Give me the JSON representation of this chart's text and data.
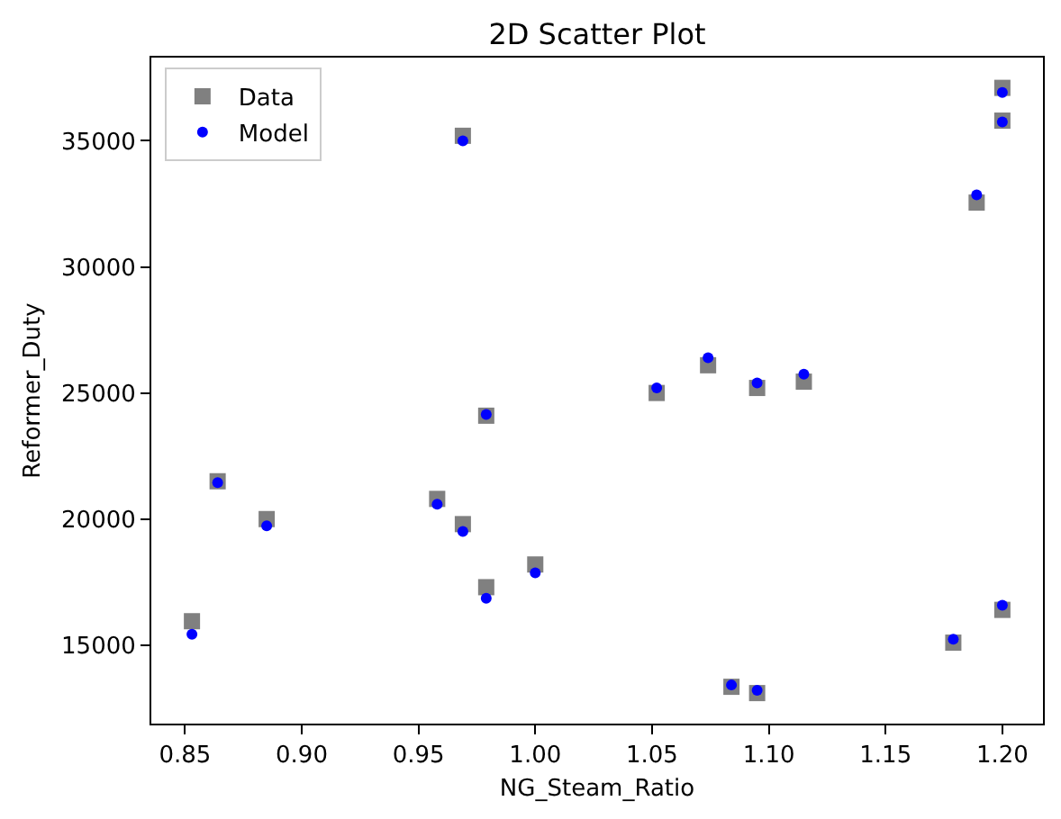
{
  "chart_data": {
    "type": "scatter",
    "title": "2D Scatter Plot",
    "xlabel": "NG_Steam_Ratio",
    "ylabel": "Reformer_Duty",
    "xlim": [
      0.8356,
      1.2174
    ],
    "ylim": [
      11890,
      38300
    ],
    "xticks": [
      0.85,
      {
        "value": 0.9,
        "label": "0.90"
      },
      0.95,
      {
        "value": 1.0,
        "label": "1.00"
      },
      1.05,
      {
        "value": 1.1,
        "label": "1.10"
      },
      1.15,
      {
        "value": 1.2,
        "label": "1.20"
      }
    ],
    "yticks": [
      15000,
      20000,
      25000,
      30000,
      35000
    ],
    "grid": false,
    "legend": "top left",
    "x": [
      0.853,
      0.864,
      0.885,
      0.958,
      0.969,
      0.969,
      0.979,
      0.979,
      1.0,
      1.052,
      1.074,
      1.084,
      1.095,
      1.095,
      1.115,
      1.179,
      1.189,
      1.2,
      1.2,
      1.2
    ],
    "series": [
      {
        "name": "Data",
        "color": "#808080",
        "marker": "square",
        "values": [
          15950,
          21500,
          20000,
          20800,
          19800,
          35200,
          17300,
          24100,
          18200,
          25000,
          26100,
          13350,
          25200,
          13100,
          25450,
          15100,
          32550,
          37100,
          35800,
          16400
        ]
      },
      {
        "name": "Model",
        "color": "#0000ff",
        "marker": "circle",
        "values": [
          15430,
          21450,
          19730,
          20590,
          19510,
          35000,
          16860,
          24150,
          17870,
          25200,
          26400,
          13420,
          25400,
          13210,
          25750,
          15240,
          32860,
          36920,
          35750,
          16580
        ]
      }
    ]
  }
}
